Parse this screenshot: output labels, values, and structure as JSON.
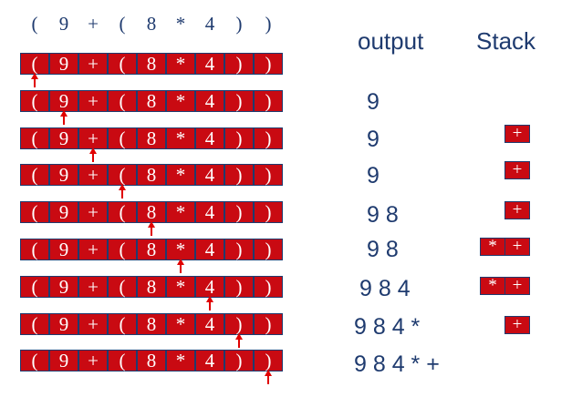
{
  "tokens": [
    "(",
    "9",
    "+",
    "(",
    "8",
    "*",
    "4",
    ")",
    ")"
  ],
  "headers": {
    "output": "output",
    "stack": "Stack"
  },
  "steps": [
    {
      "pointer": 0,
      "output": "",
      "stack": []
    },
    {
      "pointer": 1,
      "output": "9",
      "stack": []
    },
    {
      "pointer": 2,
      "output": "9",
      "stack": [
        "+"
      ]
    },
    {
      "pointer": 3,
      "output": "9",
      "stack": [
        "+"
      ]
    },
    {
      "pointer": 4,
      "output": "9 8",
      "stack": [
        "+"
      ]
    },
    {
      "pointer": 5,
      "output": "9 8",
      "stack": [
        "*",
        "+"
      ]
    },
    {
      "pointer": 6,
      "output": "9 8 4",
      "stack": [
        "*",
        "+"
      ]
    },
    {
      "pointer": 7,
      "output": "9 8 4 *",
      "stack": [
        "+"
      ]
    },
    {
      "pointer": 8,
      "output": "9 8 4 * +",
      "stack": []
    }
  ],
  "colors": {
    "cell_fill": "#c90a12",
    "text_blue": "#1f3b6f",
    "arrow": "#e00000"
  }
}
